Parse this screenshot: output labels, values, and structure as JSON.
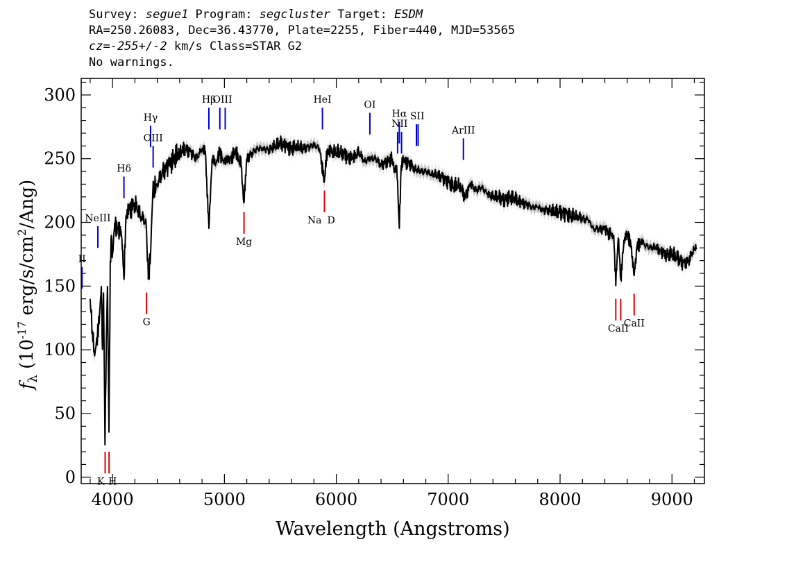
{
  "header": {
    "line1": {
      "survey_label": "Survey: ",
      "survey": "segue1",
      "program_label": " Program: ",
      "program": "segcluster",
      "target_label": " Target: ",
      "target": "ESDM"
    },
    "line2": "RA=250.26083, Dec=36.43770, Plate=2255, Fiber=440, MJD=53565",
    "line3": {
      "cz": "cz=-255+/-2",
      "rest": " km/s Class=STAR G2"
    },
    "line4": "No warnings."
  },
  "colors": {
    "spectrum": "#000000",
    "error_band": "#c8c8c8",
    "emission_lines": "#0000cc",
    "absorption_lines": "#dd0000",
    "axes": "#000000"
  },
  "chart_data": {
    "type": "line",
    "xlabel": "Wavelength (Angstroms)",
    "ylabel": "f_λ (10^-17 erg/s/cm^2/Ang)",
    "xlim": [
      3720,
      9290
    ],
    "ylim": [
      -5,
      313
    ],
    "xticks": [
      4000,
      5000,
      6000,
      7000,
      8000,
      9000
    ],
    "yticks": [
      0,
      50,
      100,
      150,
      200,
      250,
      300
    ],
    "grid": false,
    "series": [
      {
        "x": [
          3800,
          3820,
          3840,
          3860,
          3880,
          3900,
          3910,
          3920,
          3933,
          3945,
          3955,
          3968,
          3980,
          3990,
          4000,
          4020,
          4050,
          4080,
          4102,
          4120,
          4150,
          4200,
          4250,
          4300,
          4320,
          4340,
          4360,
          4400,
          4450,
          4500,
          4550,
          4600,
          4650,
          4700,
          4750,
          4800,
          4830,
          4861,
          4890,
          4920,
          4957,
          4990,
          5050,
          5100,
          5150,
          5173,
          5200,
          5250,
          5300,
          5350,
          5400,
          5450,
          5500,
          5550,
          5600,
          5650,
          5700,
          5750,
          5800,
          5850,
          5893,
          5920,
          5950,
          6000,
          6050,
          6100,
          6150,
          6200,
          6250,
          6300,
          6350,
          6400,
          6450,
          6500,
          6520,
          6540,
          6563,
          6580,
          6600,
          6650,
          6700,
          6750,
          6800,
          6850,
          6900,
          6950,
          7000,
          7050,
          7100,
          7150,
          7200,
          7250,
          7300,
          7350,
          7400,
          7450,
          7500,
          7550,
          7600,
          7650,
          7700,
          7750,
          7800,
          7850,
          7900,
          7950,
          8000,
          8050,
          8100,
          8150,
          8200,
          8250,
          8300,
          8350,
          8400,
          8450,
          8480,
          8498,
          8520,
          8542,
          8570,
          8600,
          8630,
          8662,
          8690,
          8720,
          8750,
          8800,
          8850,
          8900,
          8950,
          9000,
          9050,
          9100,
          9150,
          9200,
          9220
        ],
        "y": [
          140,
          115,
          95,
          110,
          120,
          150,
          100,
          145,
          25,
          110,
          150,
          35,
          170,
          190,
          175,
          200,
          195,
          190,
          155,
          205,
          210,
          215,
          205,
          200,
          155,
          175,
          225,
          230,
          240,
          245,
          250,
          255,
          258,
          255,
          250,
          258,
          255,
          195,
          250,
          245,
          255,
          248,
          250,
          255,
          245,
          215,
          250,
          255,
          258,
          258,
          257,
          260,
          262,
          260,
          258,
          260,
          258,
          259,
          261,
          258,
          232,
          258,
          255,
          255,
          255,
          252,
          250,
          255,
          248,
          250,
          250,
          245,
          248,
          250,
          240,
          245,
          195,
          245,
          248,
          247,
          242,
          240,
          240,
          238,
          237,
          235,
          232,
          228,
          230,
          220,
          230,
          225,
          228,
          222,
          220,
          220,
          218,
          220,
          218,
          215,
          215,
          212,
          212,
          210,
          210,
          208,
          208,
          207,
          205,
          205,
          203,
          202,
          195,
          195,
          195,
          190,
          190,
          150,
          188,
          155,
          185,
          190,
          185,
          158,
          183,
          185,
          183,
          180,
          180,
          178,
          175,
          175,
          172,
          168,
          170,
          180,
          180
        ]
      }
    ],
    "emission_lines": [
      {
        "label": "II",
        "x": 3727,
        "y_top": 165,
        "y_bottom": 148
      },
      {
        "label": "NeIII",
        "x": 3869,
        "y_top": 197,
        "y_bottom": 180
      },
      {
        "label": "Hδ",
        "x": 4102,
        "y_top": 236,
        "y_bottom": 219
      },
      {
        "label": "Hγ",
        "x": 4340,
        "y_top": 276,
        "y_bottom": 259
      },
      {
        "label": "OIII",
        "x": 4363,
        "y_top": 260,
        "y_bottom": 243
      },
      {
        "label": "Hβ",
        "x": 4861,
        "y_top": 290,
        "y_bottom": 273
      },
      {
        "label": "OIII",
        "x": 4959,
        "y_top": 290,
        "y_bottom": 273
      },
      {
        "label": "OIII",
        "x": 5007,
        "y_top": 290,
        "y_bottom": 273
      },
      {
        "label": "HeI",
        "x": 5876,
        "y_top": 290,
        "y_bottom": 273
      },
      {
        "label": "OI",
        "x": 6300,
        "y_top": 286,
        "y_bottom": 269
      },
      {
        "label": "NII",
        "x": 6548,
        "y_top": 271,
        "y_bottom": 254
      },
      {
        "label": "Hα",
        "x": 6563,
        "y_top": 279,
        "y_bottom": 262
      },
      {
        "label": "NII",
        "x": 6583,
        "y_top": 271,
        "y_bottom": 254
      },
      {
        "label": "SII",
        "x": 6716,
        "y_top": 277,
        "y_bottom": 260
      },
      {
        "label": "SII",
        "x": 6731,
        "y_top": 277,
        "y_bottom": 260
      },
      {
        "label": "ArIII",
        "x": 7136,
        "y_top": 266,
        "y_bottom": 249
      }
    ],
    "absorption_lines": [
      {
        "label": "K",
        "x": 3934,
        "y_top": 20,
        "y_bottom": 3
      },
      {
        "label": "H",
        "x": 3969,
        "y_top": 20,
        "y_bottom": 3
      },
      {
        "label": "G",
        "x": 4304,
        "y_top": 145,
        "y_bottom": 128
      },
      {
        "label": "Mg",
        "x": 5175,
        "y_top": 208,
        "y_bottom": 191
      },
      {
        "label": "Na",
        "x": 5894,
        "y_top": 225,
        "y_bottom": 208
      },
      {
        "label": "D",
        "x": 5894,
        "y_top": 225,
        "y_bottom": 208
      },
      {
        "label": "CaII",
        "x": 8498,
        "y_top": 140,
        "y_bottom": 123
      },
      {
        "label": "CaII",
        "x": 8542,
        "y_top": 140,
        "y_bottom": 123
      },
      {
        "label": "CaII",
        "x": 8662,
        "y_top": 144,
        "y_bottom": 127
      }
    ]
  }
}
